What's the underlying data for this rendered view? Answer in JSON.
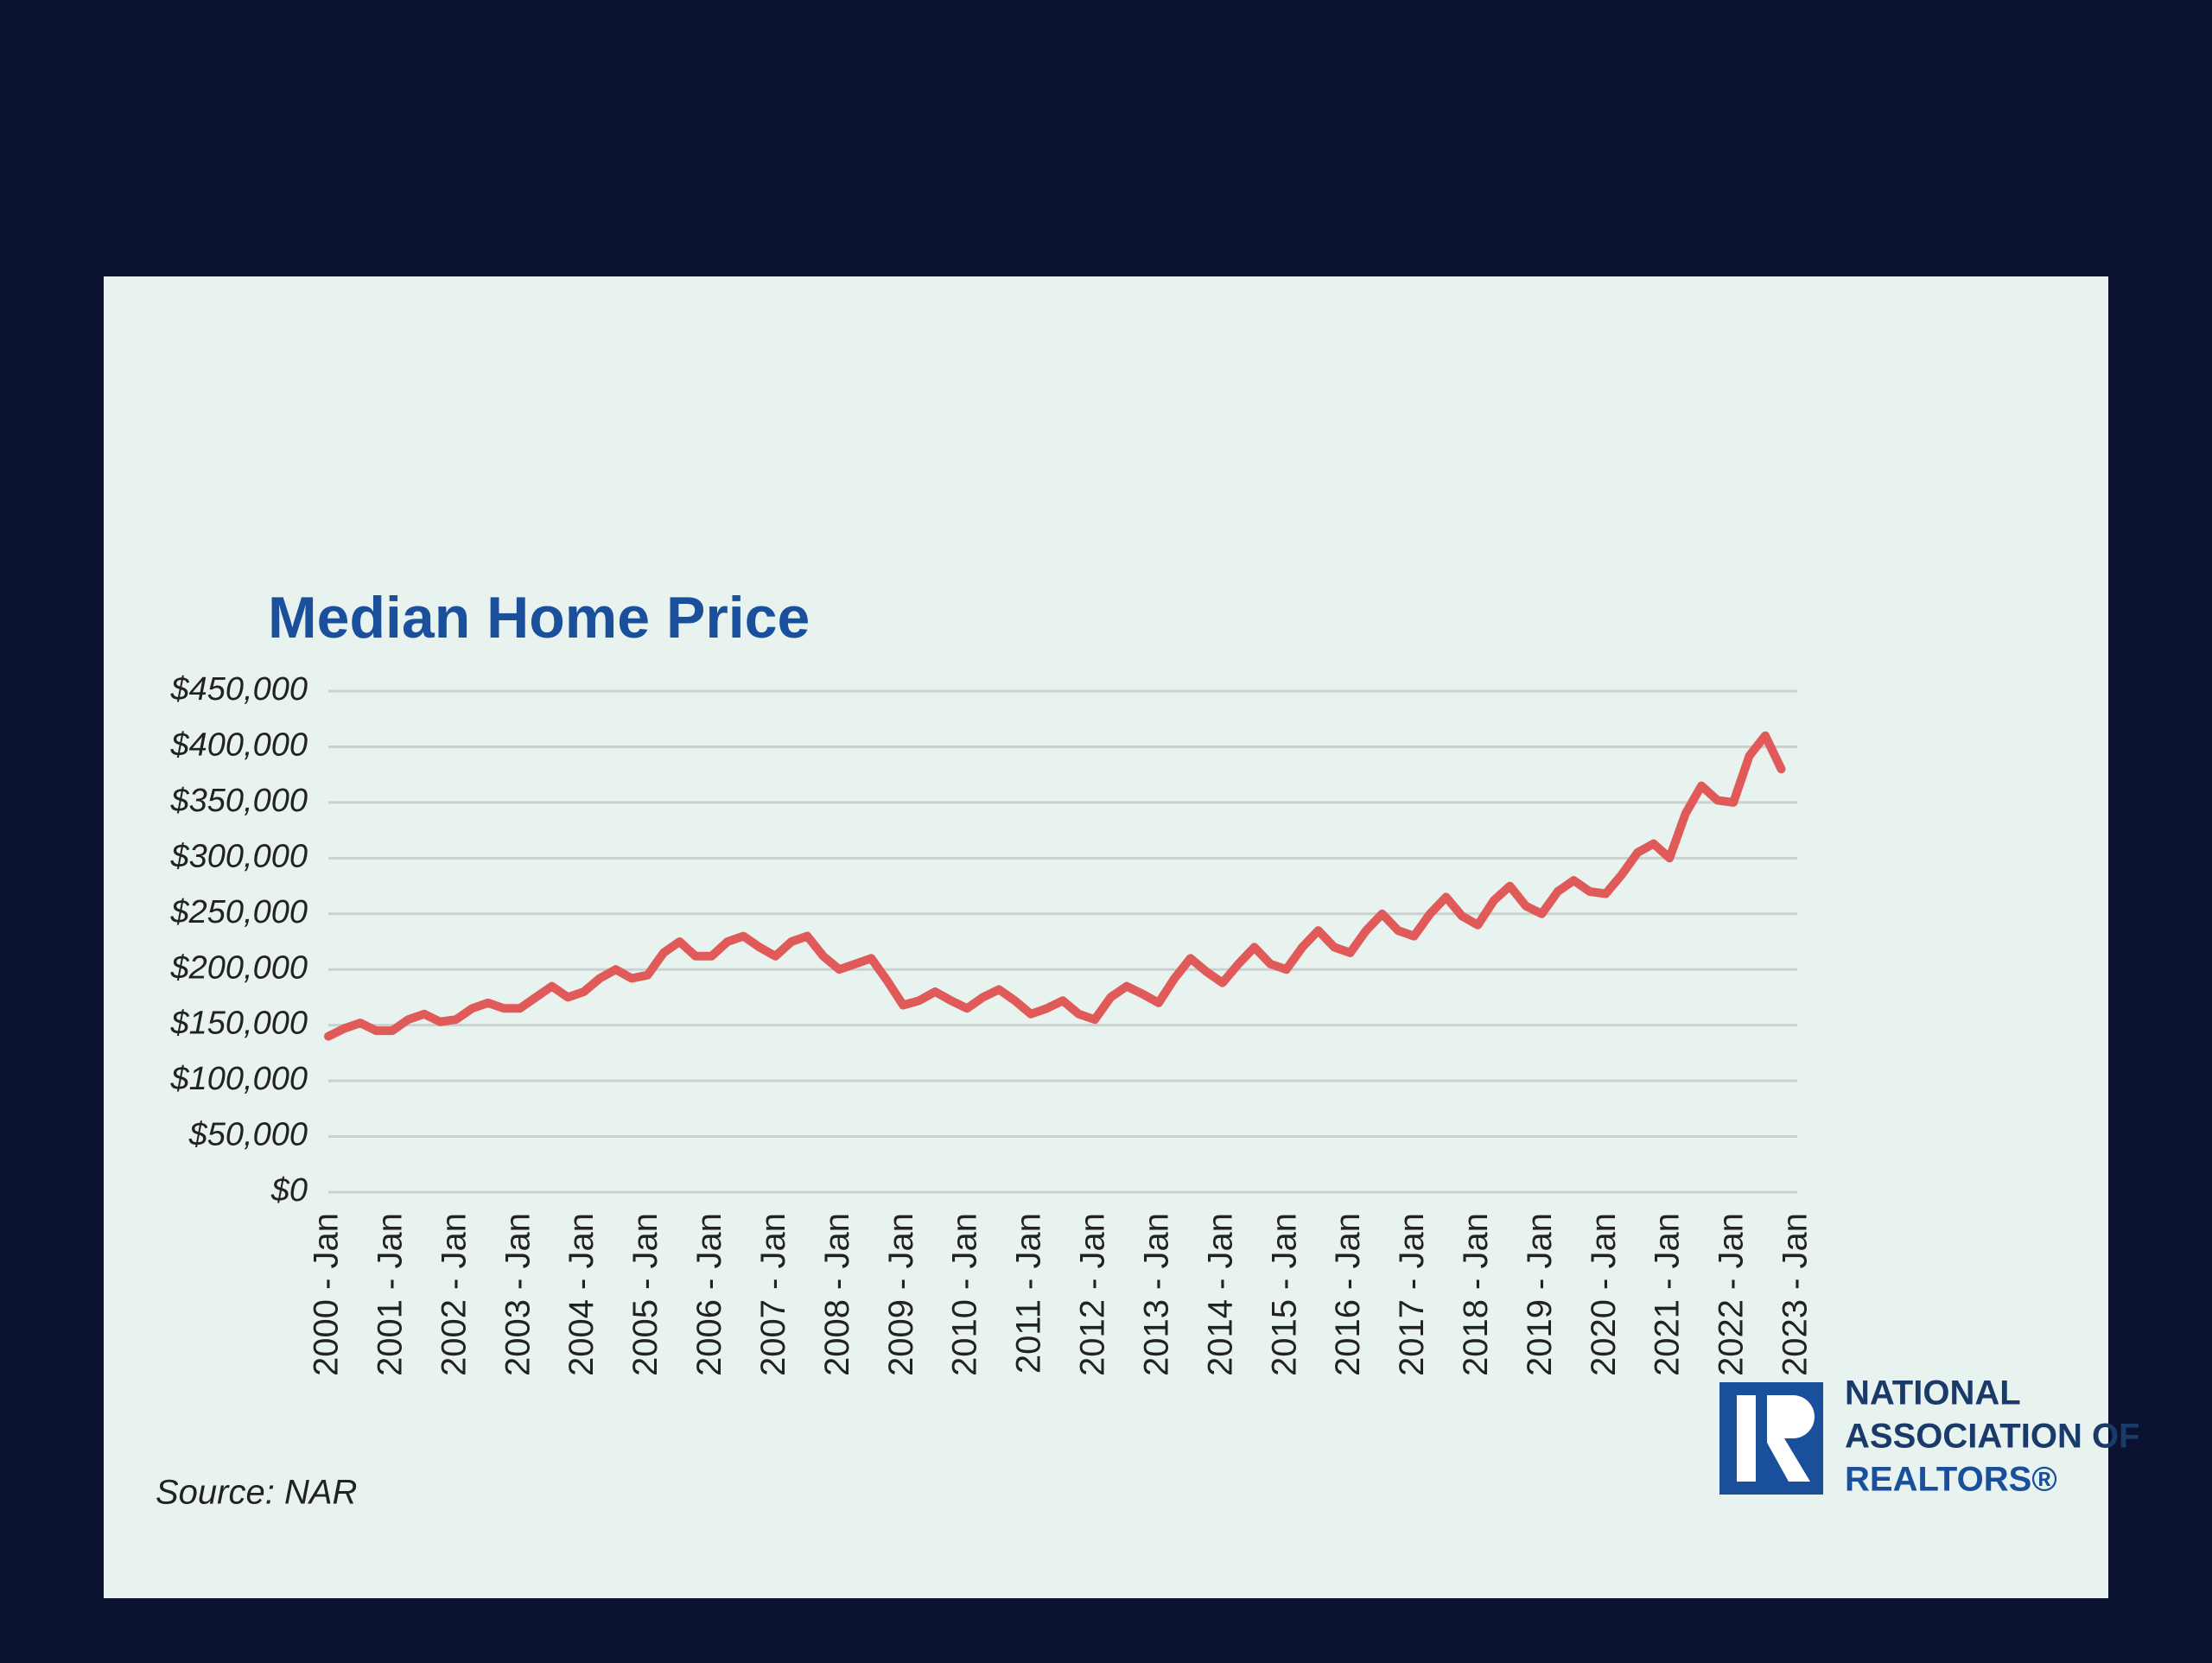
{
  "chart_data": {
    "type": "line",
    "title": "Median Home Price",
    "categories": [
      "2000 - Jan",
      null,
      null,
      null,
      "2001 - Jan",
      null,
      null,
      null,
      "2002 - Jan",
      null,
      null,
      null,
      "2003 - Jan",
      null,
      null,
      null,
      "2004 - Jan",
      null,
      null,
      null,
      "2005 - Jan",
      null,
      null,
      null,
      "2006 - Jan",
      null,
      null,
      null,
      "2007 - Jan",
      null,
      null,
      null,
      "2008 - Jan",
      null,
      null,
      null,
      "2009 - Jan",
      null,
      null,
      null,
      "2010 - Jan",
      null,
      null,
      null,
      "2011 - Jan",
      null,
      null,
      null,
      "2012 - Jan",
      null,
      null,
      null,
      "2013 - Jan",
      null,
      null,
      null,
      "2014 - Jan",
      null,
      null,
      null,
      "2015 - Jan",
      null,
      null,
      null,
      "2016 - Jan",
      null,
      null,
      null,
      "2017 - Jan",
      null,
      null,
      null,
      "2018 - Jan",
      null,
      null,
      null,
      "2019 - Jan",
      null,
      null,
      null,
      "2020 - Jan",
      null,
      null,
      null,
      "2021 - Jan",
      null,
      null,
      null,
      "2022 - Jan",
      null,
      null,
      null,
      "2023 - Jan"
    ],
    "series": [
      {
        "color": "#e05a5a",
        "values": [
          140000,
          147000,
          152000,
          145000,
          145000,
          155000,
          160000,
          153000,
          155000,
          165000,
          170000,
          165000,
          165000,
          175000,
          185000,
          175000,
          180000,
          192000,
          200000,
          192000,
          195000,
          215000,
          225000,
          212000,
          212000,
          225000,
          230000,
          220000,
          212000,
          225000,
          230000,
          212000,
          200000,
          205000,
          210000,
          190000,
          168000,
          172000,
          180000,
          172000,
          165000,
          175000,
          182000,
          172000,
          160000,
          165000,
          172000,
          160000,
          155000,
          175000,
          185000,
          178000,
          170000,
          192000,
          210000,
          198000,
          188000,
          205000,
          220000,
          205000,
          200000,
          220000,
          235000,
          220000,
          215000,
          235000,
          250000,
          235000,
          230000,
          250000,
          265000,
          248000,
          240000,
          262000,
          275000,
          257000,
          250000,
          270000,
          280000,
          270000,
          268000,
          285000,
          305000,
          313000,
          300000,
          340000,
          365000,
          352000,
          350000,
          392000,
          410000,
          380000,
          null
        ]
      }
    ],
    "ylim": [
      0,
      450000
    ],
    "yticks": [
      {
        "value": 0,
        "label": "$0"
      },
      {
        "value": 50000,
        "label": "$50,000"
      },
      {
        "value": 100000,
        "label": "$100,000"
      },
      {
        "value": 150000,
        "label": "$150,000"
      },
      {
        "value": 200000,
        "label": "$200,000"
      },
      {
        "value": 250000,
        "label": "$250,000"
      },
      {
        "value": 300000,
        "label": "$300,000"
      },
      {
        "value": 350000,
        "label": "$350,000"
      },
      {
        "value": 400000,
        "label": "$400,000"
      },
      {
        "value": 450000,
        "label": "$450,000"
      }
    ],
    "grid": true
  },
  "source": "Source: NAR",
  "logo": {
    "lines": [
      "NATIONAL",
      "ASSOCIATION OF",
      "REALTORS®"
    ]
  }
}
